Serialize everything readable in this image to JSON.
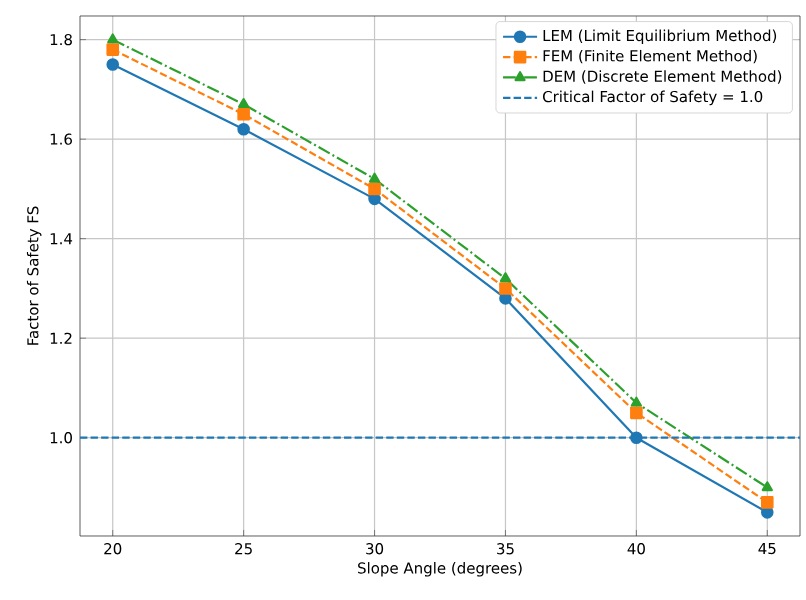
{
  "chart_data": {
    "type": "line",
    "xlabel": "Slope Angle (degrees)",
    "ylabel": "Factor of Safety FS",
    "x": [
      20,
      25,
      30,
      35,
      40,
      45
    ],
    "series": [
      {
        "name": "LEM (Limit Equilibrium Method)",
        "color": "#1f77b4",
        "marker": "circle",
        "line_style": "solid",
        "values": [
          1.75,
          1.62,
          1.48,
          1.28,
          1.0,
          0.85
        ]
      },
      {
        "name": "FEM (Finite Element Method)",
        "color": "#ff7f0e",
        "marker": "square",
        "line_style": "dashed",
        "values": [
          1.78,
          1.65,
          1.5,
          1.3,
          1.05,
          0.87
        ]
      },
      {
        "name": "DEM (Discrete Element Method)",
        "color": "#2ca02c",
        "marker": "triangle",
        "line_style": "dashdot",
        "values": [
          1.8,
          1.67,
          1.52,
          1.32,
          1.07,
          0.9
        ]
      }
    ],
    "ref_lines": [
      {
        "axis": "y",
        "value": 1.0,
        "label": "Critical Factor of Safety = 1.0",
        "color": "#1f77b4",
        "line_style": "dashed"
      }
    ],
    "xlim": [
      18.75,
      46.25
    ],
    "ylim": [
      0.8025,
      1.8475
    ],
    "xticks": [
      20,
      25,
      30,
      35,
      40,
      45
    ],
    "yticks": [
      {
        "value": 1.0,
        "label": "1.0"
      },
      {
        "value": 1.2,
        "label": "1.2"
      },
      {
        "value": 1.4,
        "label": "1.4"
      },
      {
        "value": 1.6,
        "label": "1.6"
      },
      {
        "value": 1.8,
        "label": "1.8"
      }
    ],
    "grid": true,
    "legend": "top right"
  }
}
